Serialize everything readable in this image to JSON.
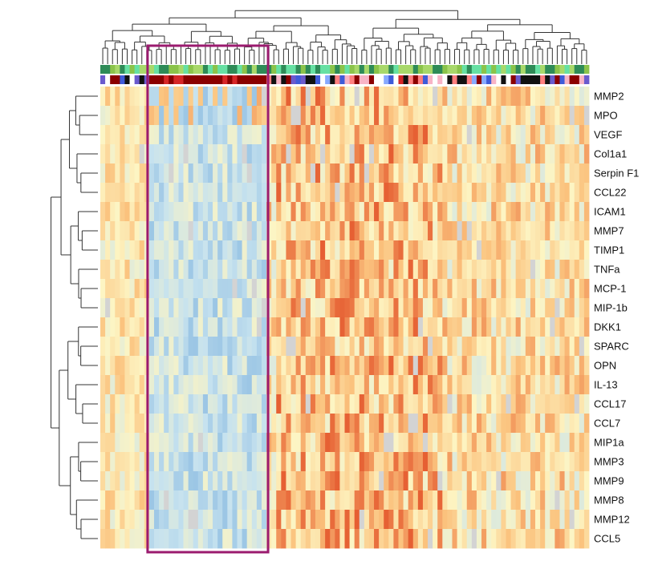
{
  "chart_data": {
    "type": "heatmap",
    "title": "",
    "xlabel": "",
    "ylabel": "",
    "rows": [
      "MMP2",
      "MPO",
      "VEGF",
      "Col1a1",
      "Serpin F1",
      "CCL22",
      "ICAM1",
      "MMP7",
      "TIMP1",
      "TNFa",
      "MCP-1",
      "MIP-1b",
      "DKK1",
      "SPARC",
      "OPN",
      "IL-13",
      "CCL17",
      "CCL7",
      "MIP1a",
      "MMP3",
      "MMP9",
      "MMP8",
      "MMP12",
      "CCL5"
    ],
    "column_count": 100,
    "value_scale": "low (blue) to high (red)",
    "colors": {
      "low": "#5b9bd5",
      "lowmid": "#c6e2ef",
      "mid": "#fdf5c3",
      "highmid": "#fbc27d",
      "high": "#e0451f",
      "missing": "#d3d3d3"
    },
    "annotation_palettes": {
      "group": [
        "#2e8b57",
        "#8bc34a",
        "#66e0a3",
        "#a8d86a"
      ],
      "sample": [
        "#3f5bd9",
        "#8b0000",
        "#d62728",
        "#ff7f7f",
        "#111111",
        "#f8b4c6",
        "#ffffff",
        "#6a5acd",
        "#87a9ff"
      ]
    },
    "highlight": {
      "label": "",
      "color": "#9b1b6f"
    }
  }
}
